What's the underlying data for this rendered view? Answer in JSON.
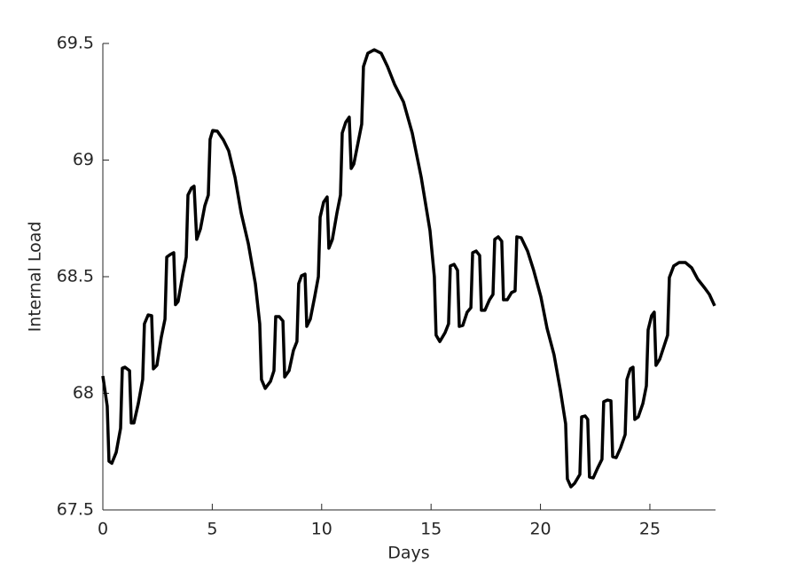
{
  "chart_data": {
    "type": "line",
    "xlabel": "Days",
    "ylabel": "Internal Load",
    "color": "#000000",
    "xlim": [
      0,
      28
    ],
    "xticks": [
      0,
      5,
      10,
      15,
      20,
      25
    ],
    "ylim": [
      67.5,
      69.5
    ],
    "yticks": [
      67.5,
      68,
      68.5,
      69,
      69.5
    ],
    "x": [
      0,
      0.2,
      0.28,
      0.41,
      0.61,
      0.81,
      0.89,
      1.01,
      1.22,
      1.3,
      1.42,
      1.62,
      1.82,
      1.9,
      2.07,
      2.23,
      2.31,
      2.47,
      2.67,
      2.84,
      2.92,
      3.08,
      3.24,
      3.32,
      3.44,
      3.65,
      3.81,
      3.89,
      4.05,
      4.17,
      4.29,
      4.46,
      4.66,
      4.82,
      4.9,
      5.02,
      5.23,
      5.51,
      5.75,
      6.04,
      6.32,
      6.65,
      6.97,
      7.17,
      7.25,
      7.42,
      7.66,
      7.82,
      7.9,
      8.06,
      8.23,
      8.31,
      8.51,
      8.71,
      8.87,
      8.95,
      9.08,
      9.24,
      9.32,
      9.48,
      9.68,
      9.85,
      9.93,
      10.09,
      10.25,
      10.33,
      10.49,
      10.7,
      10.86,
      10.94,
      11.1,
      11.26,
      11.35,
      11.47,
      11.67,
      11.83,
      11.91,
      12.11,
      12.4,
      12.72,
      13.01,
      13.33,
      13.74,
      14.14,
      14.55,
      14.95,
      15.15,
      15.23,
      15.4,
      15.64,
      15.8,
      15.88,
      16.05,
      16.21,
      16.29,
      16.45,
      16.65,
      16.82,
      16.9,
      17.06,
      17.22,
      17.3,
      17.46,
      17.67,
      17.83,
      17.91,
      18.07,
      18.23,
      18.31,
      18.48,
      18.68,
      18.84,
      18.92,
      19.12,
      19.41,
      19.69,
      20.02,
      20.3,
      20.62,
      20.91,
      21.15,
      21.23,
      21.39,
      21.56,
      21.8,
      21.88,
      22.04,
      22.16,
      22.24,
      22.41,
      22.61,
      22.81,
      22.89,
      23.06,
      23.22,
      23.3,
      23.46,
      23.66,
      23.87,
      23.95,
      24.11,
      24.23,
      24.31,
      24.47,
      24.68,
      24.84,
      24.92,
      25.08,
      25.2,
      25.28,
      25.45,
      25.65,
      25.81,
      25.89,
      26.09,
      26.34,
      26.62,
      26.91,
      27.19,
      27.51,
      27.72,
      27.96
    ],
    "values": [
      68.074,
      67.945,
      67.709,
      67.7,
      67.747,
      67.85,
      68.108,
      68.112,
      68.097,
      67.873,
      67.873,
      67.956,
      68.059,
      68.298,
      68.336,
      68.333,
      68.105,
      68.12,
      68.24,
      68.318,
      68.584,
      68.595,
      68.603,
      68.38,
      68.394,
      68.508,
      68.584,
      68.85,
      68.88,
      68.888,
      68.66,
      68.705,
      68.804,
      68.85,
      69.089,
      69.127,
      69.124,
      69.086,
      69.04,
      68.926,
      68.774,
      68.641,
      68.47,
      68.298,
      68.059,
      68.021,
      68.051,
      68.097,
      68.329,
      68.329,
      68.31,
      68.07,
      68.097,
      68.184,
      68.222,
      68.47,
      68.504,
      68.511,
      68.287,
      68.318,
      68.413,
      68.5,
      68.755,
      68.82,
      68.842,
      68.622,
      68.66,
      68.774,
      68.85,
      69.116,
      69.162,
      69.184,
      68.964,
      68.983,
      69.078,
      69.154,
      69.401,
      69.458,
      69.473,
      69.458,
      69.401,
      69.325,
      69.249,
      69.116,
      68.926,
      68.698,
      68.5,
      68.249,
      68.222,
      68.26,
      68.298,
      68.546,
      68.553,
      68.527,
      68.287,
      68.291,
      68.348,
      68.367,
      68.603,
      68.61,
      68.591,
      68.356,
      68.356,
      68.401,
      68.424,
      68.66,
      68.671,
      68.652,
      68.401,
      68.401,
      68.432,
      68.439,
      68.671,
      68.667,
      68.61,
      68.527,
      68.413,
      68.279,
      68.165,
      68.013,
      67.869,
      67.633,
      67.599,
      67.614,
      67.652,
      67.899,
      67.903,
      67.888,
      67.641,
      67.637,
      67.679,
      67.717,
      67.964,
      67.971,
      67.968,
      67.728,
      67.724,
      67.766,
      67.823,
      68.059,
      68.105,
      68.112,
      67.888,
      67.899,
      67.956,
      68.032,
      68.272,
      68.333,
      68.348,
      68.12,
      68.146,
      68.203,
      68.249,
      68.496,
      68.546,
      68.561,
      68.561,
      68.538,
      68.489,
      68.451,
      68.424,
      68.375
    ]
  }
}
